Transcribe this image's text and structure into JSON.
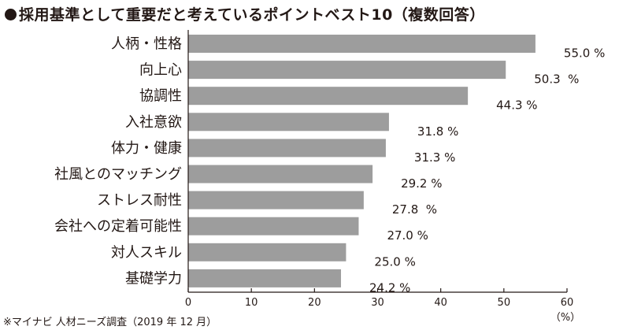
{
  "chart_data": {
    "type": "bar",
    "orientation": "horizontal",
    "title": "採用基準として重要だと考えているポイントベスト10（複数回答）",
    "categories": [
      "人柄・性格",
      "向上心",
      "協調性",
      "入社意欲",
      "体力・健康",
      "社風とのマッチング",
      "ストレス耐性",
      "会社への定着可能性",
      "対人スキル",
      "基礎学力"
    ],
    "values": [
      55.0,
      50.3,
      44.3,
      31.8,
      31.3,
      29.2,
      27.8,
      27.0,
      25.0,
      24.2
    ],
    "value_labels": [
      "55.0 %",
      "50.3  %",
      "44.3 %",
      "31.8 %",
      "31.3 %",
      "29.2 %",
      "27.8  %",
      "27.0 %",
      "25.0 %",
      "24.2 %"
    ],
    "xlim": [
      0,
      60
    ],
    "xticks": [
      "0",
      "10",
      "20",
      "30",
      "40",
      "50",
      "60"
    ],
    "xunit": "（%）",
    "source": "※マイナビ 人材ニーズ調査（2019 年 12 月）",
    "bar_color": "#9d9d9d",
    "grid": false
  }
}
